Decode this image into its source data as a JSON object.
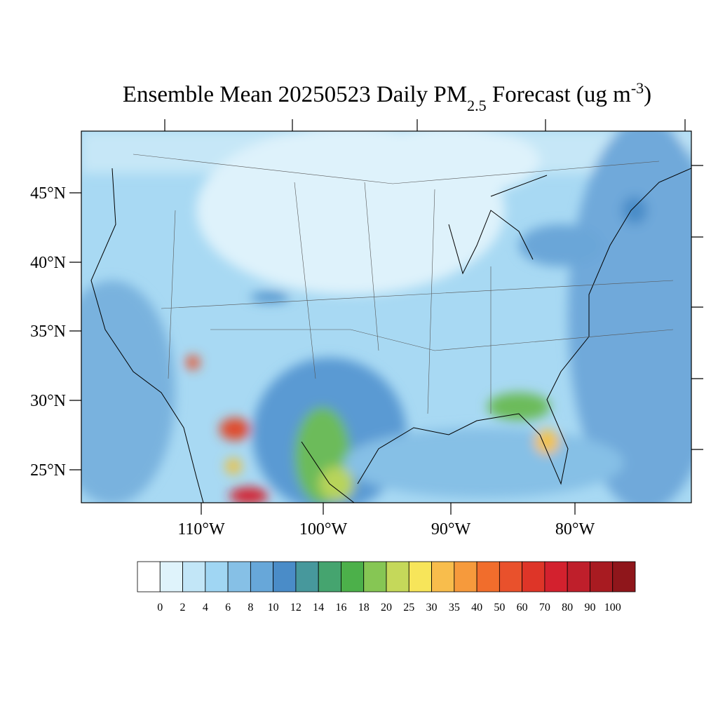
{
  "map": {
    "title": [
      "Ensemble Mean 20250523 Daily PM",
      "2.5",
      " Forecast (ug m",
      "-3",
      ")"
    ],
    "lat_labels": [
      "45°N",
      "40°N",
      "35°N",
      "30°N",
      "25°N"
    ],
    "lon_labels": [
      "110°W",
      "100°W",
      "90°W",
      "80°W"
    ]
  },
  "colorbar": {
    "levels": [
      0,
      2,
      4,
      6,
      8,
      10,
      12,
      14,
      16,
      18,
      20,
      25,
      30,
      35,
      40,
      50,
      60,
      70,
      80,
      90,
      100
    ],
    "colors": [
      "#ffffff",
      "#dff3fb",
      "#c2e6f7",
      "#a0d6f3",
      "#86c0e6",
      "#67a7d9",
      "#4a8cc8",
      "#47989c",
      "#45a46f",
      "#4cb04a",
      "#86c654",
      "#c5d85a",
      "#f7e55a",
      "#f8bd4c",
      "#f69a3c",
      "#f16d2c",
      "#e9512c",
      "#de3528",
      "#d3212e",
      "#bf1f2b",
      "#a81b21",
      "#8f161b"
    ]
  }
}
